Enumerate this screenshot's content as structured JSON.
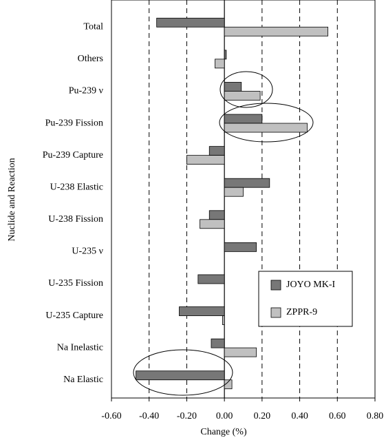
{
  "chart_data": {
    "type": "bar",
    "orientation": "horizontal",
    "x_label": "Change (%)",
    "y_label": "Nuclide and Reaction",
    "categories": [
      "Total",
      "Others",
      "Pu-239 ν",
      "Pu-239 Fission",
      "Pu-239 Capture",
      "U-238 Elastic",
      "U-238 Fission",
      "U-235 ν",
      "U-235 Fission",
      "U-235 Capture",
      "Na Inelastic",
      "Na  Elastic"
    ],
    "series": [
      {
        "name": "JOYO MK-I",
        "color": "#777777",
        "values": [
          -0.36,
          0.01,
          0.09,
          0.2,
          -0.08,
          0.24,
          -0.08,
          0.17,
          -0.14,
          -0.24,
          -0.07,
          -0.47
        ]
      },
      {
        "name": "ZPPR-9",
        "color": "#c0c0c0",
        "values": [
          0.55,
          -0.05,
          0.19,
          0.44,
          -0.2,
          0.1,
          -0.13,
          0,
          0,
          -0.01,
          0.17,
          0.04
        ]
      }
    ],
    "xlim": [
      -0.6,
      0.8
    ],
    "xticks": [
      {
        "value": -0.6,
        "label": "-0.60"
      },
      {
        "value": -0.4,
        "label": "-0.40"
      },
      {
        "value": -0.2,
        "label": "-0.20"
      },
      {
        "value": 0,
        "label": "0.00"
      },
      {
        "value": 0.2,
        "label": "0.20"
      },
      {
        "value": 0.4,
        "label": "0.40"
      },
      {
        "value": 0.6,
        "label": "0.60"
      },
      {
        "value": 0.8,
        "label": "0.80"
      }
    ],
    "grid": true,
    "legend": "lower right"
  }
}
